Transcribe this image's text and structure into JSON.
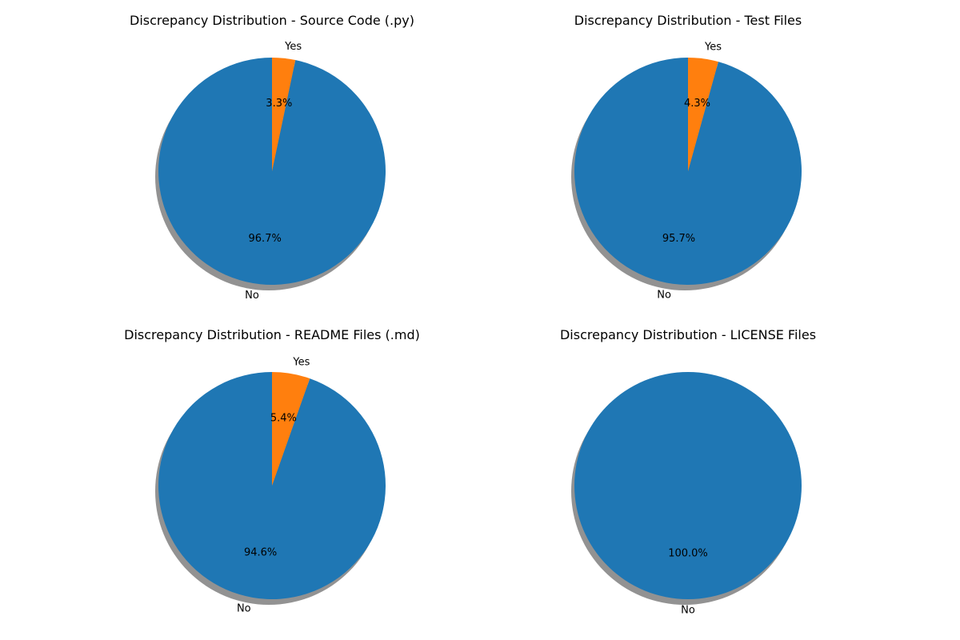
{
  "figure": {
    "background": "#ffffff",
    "slice_colors": {
      "No": "#1f77b4",
      "Yes": "#ff7f0e"
    },
    "shadow_color": "#7f7f7f"
  },
  "chart_data": [
    {
      "type": "pie",
      "title": "Discrepancy Distribution - Source Code (.py)",
      "labels": [
        "No",
        "Yes"
      ],
      "values": [
        96.7,
        3.3
      ],
      "pct_labels": [
        "96.7%",
        "3.3%"
      ],
      "start_angle": 90,
      "direction": "counterclockwise",
      "shadow": true
    },
    {
      "type": "pie",
      "title": "Discrepancy Distribution - Test Files",
      "labels": [
        "No",
        "Yes"
      ],
      "values": [
        95.7,
        4.3
      ],
      "pct_labels": [
        "95.7%",
        "4.3%"
      ],
      "start_angle": 90,
      "direction": "counterclockwise",
      "shadow": true
    },
    {
      "type": "pie",
      "title": "Discrepancy Distribution - README Files (.md)",
      "labels": [
        "No",
        "Yes"
      ],
      "values": [
        94.6,
        5.4
      ],
      "pct_labels": [
        "94.6%",
        "5.4%"
      ],
      "start_angle": 90,
      "direction": "counterclockwise",
      "shadow": true
    },
    {
      "type": "pie",
      "title": "Discrepancy Distribution - LICENSE Files",
      "labels": [
        "No"
      ],
      "values": [
        100.0
      ],
      "pct_labels": [
        "100.0%"
      ],
      "start_angle": 90,
      "direction": "counterclockwise",
      "shadow": true
    }
  ]
}
